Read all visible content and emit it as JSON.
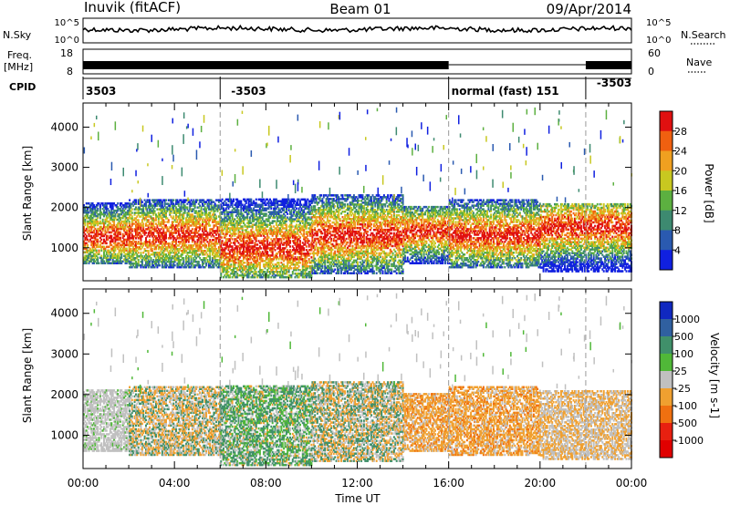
{
  "header": {
    "title": "Inuvik (fitACF)",
    "beam": "Beam 01",
    "date": "09/Apr/2014"
  },
  "ancillary": {
    "nsky_label": "N.Sky",
    "nsearch_label": "N.Search",
    "nsky_ticks": [
      "10^5",
      "10^0"
    ],
    "nsearch_ticks": [
      "10^5",
      "10^0"
    ],
    "freq_label": "Freq.",
    "freq_unit": "[MHz]",
    "freq_ticks": [
      "18",
      "8"
    ],
    "nave_label": "Nave",
    "nave_ticks": [
      "60",
      "0"
    ],
    "cpid_label": "CPID",
    "cpid_entries": [
      {
        "hour": 0.0,
        "text": "3503"
      },
      {
        "hour": 6.0,
        "text": "-3503"
      },
      {
        "hour": 16.0,
        "text": "normal (fast) 151"
      },
      {
        "hour": 22.0,
        "text": "-3503"
      }
    ],
    "mode_change_hours": [
      6.0,
      16.0,
      22.0
    ]
  },
  "chart_data": [
    {
      "type": "heatmap",
      "quantity": "Power",
      "xlabel": "Time UT",
      "ylabel": "Slant Range [km]",
      "xlim": [
        0,
        24
      ],
      "ylim": [
        180,
        4600
      ],
      "x_ticks": [
        "00:00",
        "04:00",
        "08:00",
        "12:00",
        "16:00",
        "20:00",
        "00:00"
      ],
      "y_ticks": [
        1000,
        2000,
        3000,
        4000
      ],
      "colorbar": {
        "label": "Power [dB]",
        "ticks": [
          "4",
          "8",
          "12",
          "16",
          "20",
          "24",
          "28"
        ],
        "colors": [
          "#1020e0",
          "#2a5ab0",
          "#3d8a70",
          "#5cb040",
          "#c8c820",
          "#f0a020",
          "#f06010",
          "#e01010"
        ]
      },
      "echo_bands": [
        {
          "x0": 0,
          "x1": 2,
          "y0": 600,
          "y1": 2100,
          "core": 1250
        },
        {
          "x0": 2,
          "x1": 6,
          "y0": 500,
          "y1": 2200,
          "core": 1300
        },
        {
          "x0": 6,
          "x1": 10,
          "y0": 250,
          "y1": 2200,
          "core": 1000
        },
        {
          "x0": 10,
          "x1": 14,
          "y0": 350,
          "y1": 2300,
          "core": 1300
        },
        {
          "x0": 14,
          "x1": 16,
          "y0": 600,
          "y1": 2000,
          "core": 1400
        },
        {
          "x0": 16,
          "x1": 20,
          "y0": 500,
          "y1": 2200,
          "core": 1300
        },
        {
          "x0": 20,
          "x1": 24,
          "y0": 400,
          "y1": 2100,
          "core": 1500
        }
      ]
    },
    {
      "type": "heatmap",
      "quantity": "Velocity",
      "xlabel": "Time UT",
      "ylabel": "Slant Range [km]",
      "xlim": [
        0,
        24
      ],
      "ylim": [
        180,
        4600
      ],
      "x_ticks": [
        "00:00",
        "04:00",
        "08:00",
        "12:00",
        "16:00",
        "20:00",
        "00:00"
      ],
      "y_ticks": [
        1000,
        2000,
        3000,
        4000
      ],
      "colorbar": {
        "label": "Velocity [m s-1]",
        "ticks": [
          "1000",
          "500",
          "100",
          "25",
          "-25",
          "-100",
          "-500",
          "-1000"
        ],
        "colors": [
          "#1028c0",
          "#3060a0",
          "#40906a",
          "#50b838",
          "#c0c0c0",
          "#f0a030",
          "#f07010",
          "#e82010",
          "#e00000"
        ]
      },
      "echo_bands": [
        {
          "x0": 0,
          "x1": 2,
          "y0": 600,
          "y1": 2100,
          "class": "gray"
        },
        {
          "x0": 2,
          "x1": 6,
          "y0": 500,
          "y1": 2200,
          "class": "orange-green"
        },
        {
          "x0": 6,
          "x1": 10,
          "y0": 250,
          "y1": 2200,
          "class": "green"
        },
        {
          "x0": 10,
          "x1": 14,
          "y0": 350,
          "y1": 2300,
          "class": "green-orange"
        },
        {
          "x0": 14,
          "x1": 16,
          "y0": 600,
          "y1": 2000,
          "class": "orange"
        },
        {
          "x0": 16,
          "x1": 20,
          "y0": 500,
          "y1": 2200,
          "class": "orange"
        },
        {
          "x0": 20,
          "x1": 24,
          "y0": 400,
          "y1": 2100,
          "class": "gray-orange"
        }
      ]
    }
  ]
}
